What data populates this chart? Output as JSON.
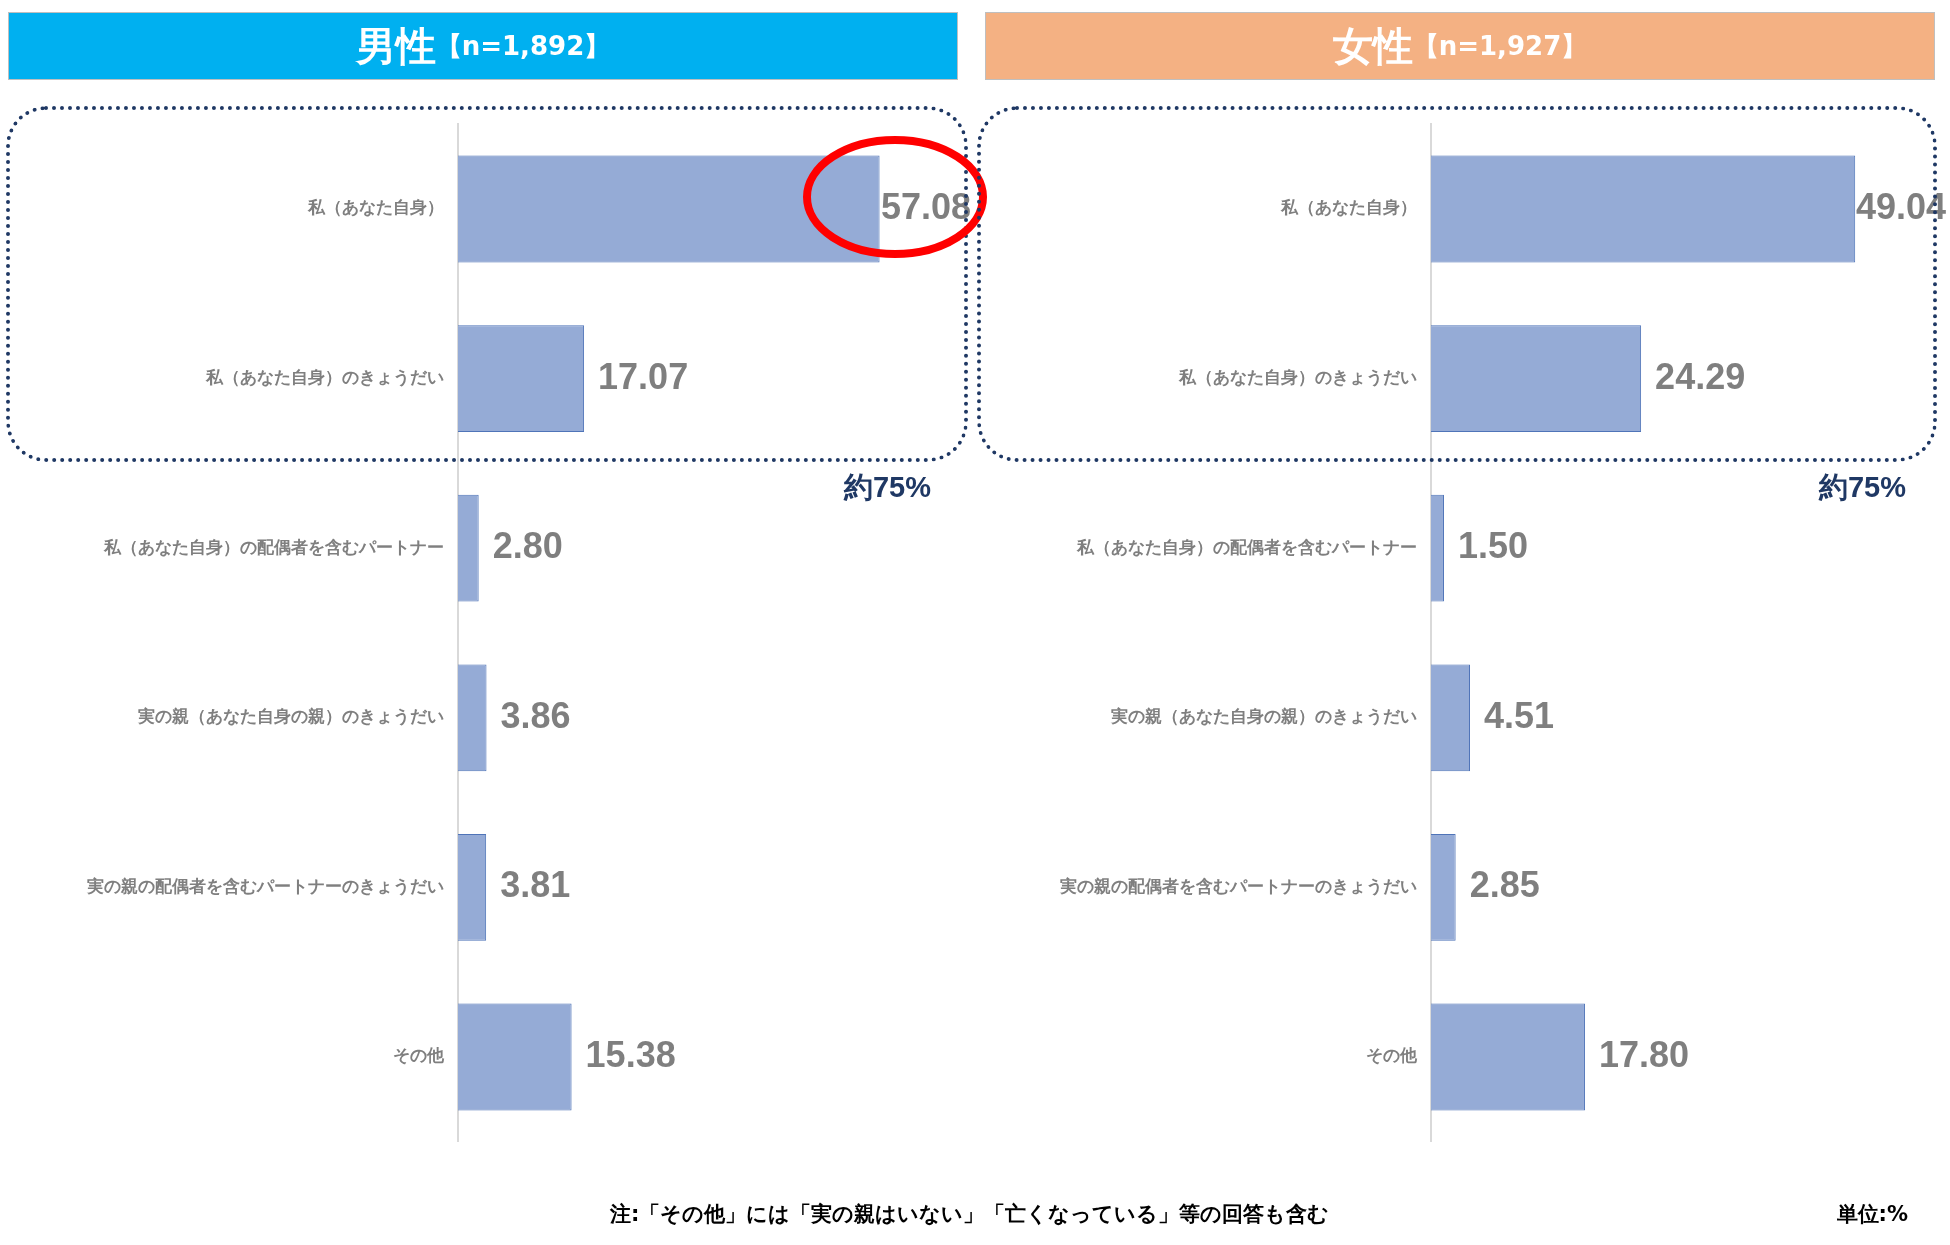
{
  "chart_data": [
    {
      "type": "bar",
      "orientation": "horizontal",
      "title": "男性【n=1,892】",
      "categories": [
        "私（あなた自身）",
        "私（あなた自身）のきょうだい",
        "私（あなた自身）の配偶者を含むパートナー",
        "実の親（あなた自身の親）のきょうだい",
        "実の親の配偶者を含むパートナーのきょうだい",
        "その他"
      ],
      "values": [
        57.08,
        17.07,
        2.8,
        3.86,
        3.81,
        15.38
      ],
      "value_labels": [
        "57.08",
        "17.07",
        "2.80",
        "3.86",
        "3.81",
        "15.38"
      ],
      "color": "#95abd6",
      "grid": false,
      "legend": false,
      "annotations": [
        "約75%",
        "注:「その他」には「実の親はいない」「亡くなっている」等の回答も含む"
      ]
    },
    {
      "type": "bar",
      "orientation": "horizontal",
      "title": "女性【n=1,927】",
      "categories": [
        "私（あなた自身）",
        "私（あなた自身）のきょうだい",
        "私（あなた自身）の配偶者を含むパートナー",
        "実の親（あなた自身の親）のきょうだい",
        "実の親の配偶者を含むパートナーのきょうだい",
        "その他"
      ],
      "values": [
        49.04,
        24.29,
        1.5,
        4.51,
        2.85,
        17.8
      ],
      "value_labels": [
        "49.04",
        "24.29",
        "1.50",
        "4.51",
        "2.85",
        "17.80"
      ],
      "color": "#95abd6",
      "grid": false,
      "legend": false,
      "annotations": [
        "約75%",
        "単位:%"
      ]
    }
  ]
}
